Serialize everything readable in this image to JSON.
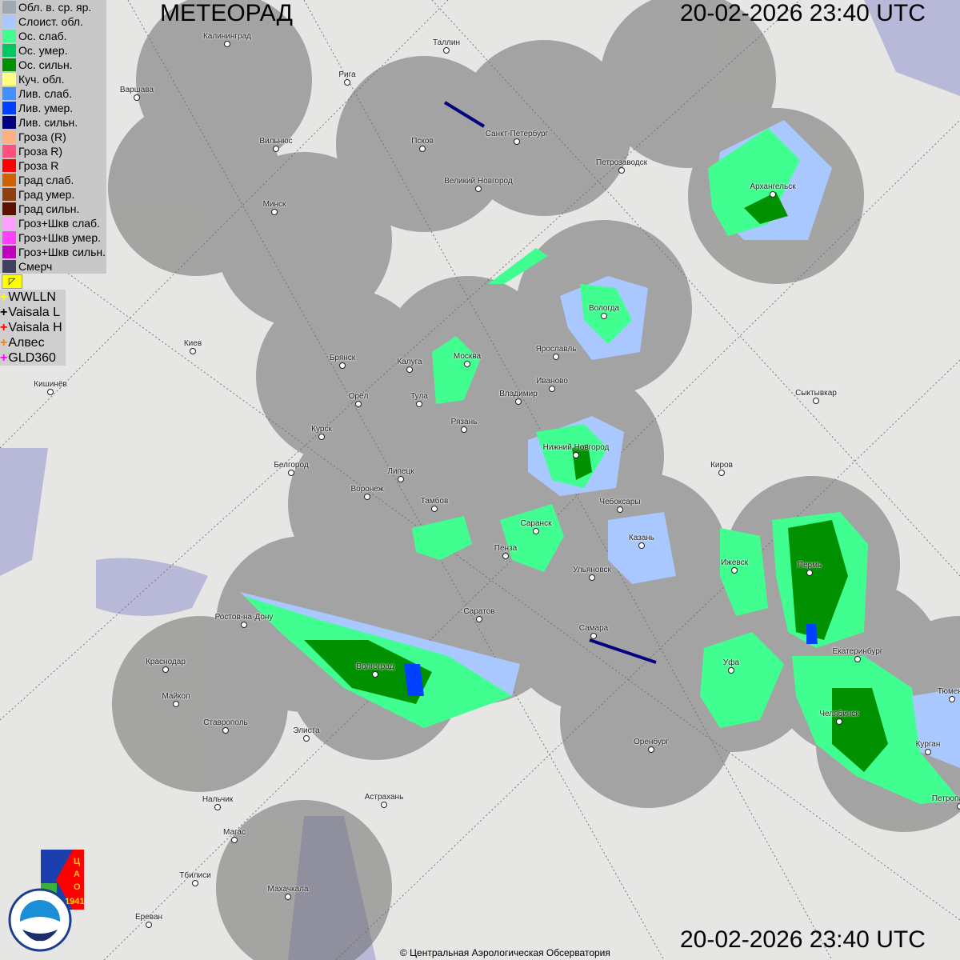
{
  "header": {
    "title": "МЕТЕОРАД",
    "timestamp_top": "20-02-2026  23:40 UTC",
    "timestamp_bottom": "20-02-2026  23:40 UTC"
  },
  "legend": [
    {
      "label": "Обл. в. ср. яр.",
      "color": "#a0a8b0"
    },
    {
      "label": "Слоист. обл.",
      "color": "#a8c8ff"
    },
    {
      "label": "Ос. слаб.",
      "color": "#40ff90"
    },
    {
      "label": "Ос. умер.",
      "color": "#00c860"
    },
    {
      "label": "Ос. сильн.",
      "color": "#009000"
    },
    {
      "label": "Куч. обл.",
      "color": "#ffff80"
    },
    {
      "label": "Лив. слаб.",
      "color": "#4090ff"
    },
    {
      "label": "Лив. умер.",
      "color": "#0040ff"
    },
    {
      "label": "Лив. сильн.",
      "color": "#000080"
    },
    {
      "label": "Гроза (R)",
      "color": "#ffb080"
    },
    {
      "label": "Гроза R)",
      "color": "#ff5080"
    },
    {
      "label": "Гроза R",
      "color": "#ff0000"
    },
    {
      "label": "Град слаб.",
      "color": "#d06000"
    },
    {
      "label": "Град умер.",
      "color": "#904010"
    },
    {
      "label": "Град сильн.",
      "color": "#601000"
    },
    {
      "label": "Гроз+Шкв слаб.",
      "color": "#ffa0ff"
    },
    {
      "label": "Гроз+Шкв умер.",
      "color": "#ff40ff"
    },
    {
      "label": "Гроз+Шкв сильн.",
      "color": "#c000c0"
    },
    {
      "label": "Смерч",
      "color": "#404060"
    }
  ],
  "lightning": [
    {
      "label": "WWLLN",
      "color": "#ffff00"
    },
    {
      "label": "Vaisala L",
      "color": "#000000"
    },
    {
      "label": "Vaisala H",
      "color": "#ff0000"
    },
    {
      "label": "Алвес",
      "color": "#ff8000"
    },
    {
      "label": "GLD360",
      "color": "#ff00ff"
    }
  ],
  "cities": [
    "Калининград",
    "Таллин",
    "Рига",
    "Варшава",
    "Санкт-Петербург",
    "Вильнюс",
    "Псков",
    "Петрозаводск",
    "Архангельск",
    "Великий Новгород",
    "Минск",
    "Вологда",
    "Киев",
    "Брянск",
    "Калуга",
    "Москва",
    "Ярославль",
    "Иваново",
    "Кишинёв",
    "Орёл",
    "Тула",
    "Владимир",
    "Сыктывкар",
    "Рязань",
    "Курск",
    "Нижний Новгород",
    "Белгород",
    "Липецк",
    "Киров",
    "Воронеж",
    "Тамбов",
    "Чебоксары",
    "Саранск",
    "Казань",
    "Пенза",
    "Ижевск",
    "Пермь",
    "Ульяновск",
    "Ростов-на-Дону",
    "Саратов",
    "Самара",
    "Екатеринбург",
    "Краснодар",
    "Волгоград",
    "Уфа",
    "Тюмень",
    "Майкоп",
    "Челябинск",
    "Ставрополь",
    "Элиста",
    "Оренбург",
    "Курган",
    "Нальчик",
    "Астрахань",
    "Петропавловск",
    "Магас",
    "Тбилиси",
    "Махачкала",
    "Ереван"
  ],
  "logos": {
    "cao": "ЦАО 1941",
    "roshydromet": "РОСГИДРОМЕТ ROSHYDROMET"
  },
  "copyright": "© Центральная Аэрологическая Обсерватория",
  "colors": {
    "radar_coverage": "#8c8c8c",
    "map_background": "#e6e6e4"
  }
}
